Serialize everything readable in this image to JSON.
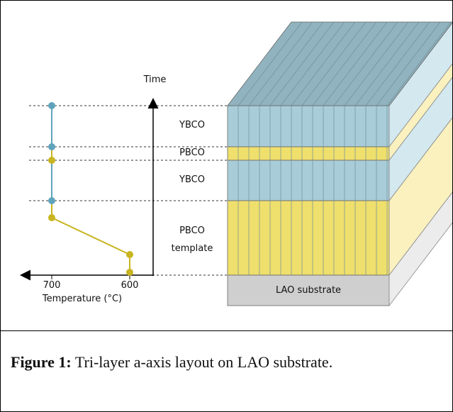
{
  "figure": {
    "time_label": "Time",
    "temperature_label": "Temperature (°C)",
    "ticks": [
      "700",
      "600"
    ],
    "layers": [
      "YBCO",
      "PBCO",
      "YBCO",
      "PBCO template"
    ],
    "substrate": "LAO substrate"
  },
  "caption": {
    "label": "Figure 1:",
    "text": "Tri-layer a-axis layout on LAO substrate."
  }
}
